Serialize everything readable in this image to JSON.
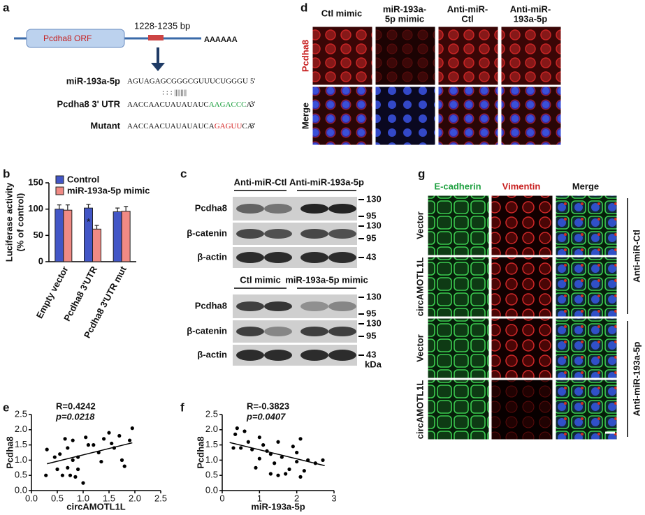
{
  "panel_a": {
    "label": "a",
    "orf": "Pcdha8 ORF",
    "site": "1228-1235 bp",
    "poly_a": "AAAAAA",
    "mirna": {
      "name": "miR-193a-5p",
      "seq": "AGUAGAGCGGGCGUUUCUGGGU",
      "end": "5'"
    },
    "pairing": ": : : ||||||||",
    "utr": {
      "name": "Pcdha8 3' UTR",
      "prefix": "AACCAACUAUAUAUC",
      "site": "AAGACCC",
      "suffix": "A",
      "end": "3'"
    },
    "mutant": {
      "name": "Mutant",
      "prefix": "AACCAACUAUAUAUCA",
      "site": "GAGUU",
      "suffix": "CA",
      "end": "3'"
    }
  },
  "panel_b": {
    "label": "b"
  },
  "panel_c": {
    "label": "c",
    "top": {
      "groups": [
        "Anti-miR-Ctl",
        "Anti-miR-193a-5p"
      ],
      "rows": [
        "Pcdha8",
        "β-catenin",
        "β-actin"
      ],
      "markers": [
        "130",
        "95",
        "130",
        "95",
        "43"
      ]
    },
    "bottom": {
      "groups": [
        "Ctl mimic",
        "miR-193a-5p mimic"
      ],
      "rows": [
        "Pcdha8",
        "β-catenin",
        "β-actin"
      ],
      "markers": [
        "130",
        "95",
        "130",
        "95",
        "43"
      ],
      "unit": "kDa"
    }
  },
  "panel_d": {
    "label": "d",
    "columns": [
      [
        "Ctl mimic"
      ],
      [
        "miR-193a-",
        "5p mimic"
      ],
      [
        "Anti-miR-",
        "Ctl"
      ],
      [
        "Anti-miR-",
        "193a-5p"
      ]
    ],
    "rows": [
      "Pcdha8",
      "Merge"
    ]
  },
  "panel_e": {
    "label": "e"
  },
  "panel_f": {
    "label": "f"
  },
  "panel_g": {
    "label": "g",
    "columns": [
      "E-cadherin",
      "Vimentin",
      "Merge"
    ],
    "rows": [
      "Vector",
      "circAMOTL1L",
      "Vector",
      "circAMOTL1L"
    ],
    "groups": [
      "Anti-miR-Ctl",
      "Anti-miR-193a-5p"
    ]
  },
  "chart_data": [
    {
      "type": "bar",
      "ylabel": [
        "Luciferase activity",
        "(% of control)"
      ],
      "categories": [
        "Empty vector",
        "Pcdha8 3'UTR",
        "Pcdha8 3'UTR mut"
      ],
      "series": [
        {
          "name": "Control",
          "color": "#4256c6",
          "values": [
            100,
            102,
            95
          ],
          "errors": [
            8,
            7,
            7
          ]
        },
        {
          "name": "miR-193a-5p mimic",
          "color": "#f08a84",
          "values": [
            98,
            62,
            96
          ],
          "errors": [
            10,
            7,
            9
          ]
        }
      ],
      "annotation": "*",
      "ylim": [
        0,
        150
      ],
      "yticks": [
        0,
        50,
        100,
        150
      ]
    },
    {
      "type": "scatter",
      "annotations": [
        "R=0.4242",
        "p=0.0218"
      ],
      "xlabel": "circAMOTL1L",
      "ylabel": "Pcdha8",
      "x": [
        0.28,
        0.3,
        0.45,
        0.5,
        0.55,
        0.6,
        0.65,
        0.7,
        0.7,
        0.75,
        0.8,
        0.8,
        0.85,
        0.9,
        0.9,
        1.0,
        1.05,
        1.1,
        1.2,
        1.3,
        1.35,
        1.4,
        1.5,
        1.55,
        1.6,
        1.7,
        1.75,
        1.8,
        1.9,
        1.95
      ],
      "y": [
        0.5,
        1.35,
        1.1,
        0.7,
        1.2,
        0.5,
        1.7,
        0.75,
        1.4,
        0.5,
        1.65,
        1.0,
        0.45,
        0.7,
        1.1,
        0.25,
        1.75,
        1.5,
        1.5,
        1.25,
        0.95,
        1.7,
        1.9,
        1.55,
        1.4,
        1.8,
        1.0,
        0.8,
        1.65,
        2.05
      ],
      "trend": {
        "x": [
          0.3,
          1.95
        ],
        "y": [
          0.88,
          1.57
        ]
      },
      "xlim": [
        0,
        2.5
      ],
      "xticks": [
        {
          "value": 0,
          "label": "0.0"
        },
        0.5,
        {
          "value": 1,
          "label": "1.0"
        },
        1.5,
        {
          "value": 2,
          "label": "2.0"
        },
        2.5
      ],
      "ylim": [
        0,
        2.5
      ],
      "yticks": [
        {
          "value": 0,
          "label": "0.0"
        },
        0.5,
        {
          "value": 1,
          "label": "1.0"
        },
        1.5,
        {
          "value": 2,
          "label": "2.0"
        },
        2.5
      ]
    },
    {
      "type": "scatter",
      "annotations": [
        "R=-0.3823",
        "p=0.0407"
      ],
      "xlabel": "miR-193a-5p",
      "ylabel": "Pcdha8",
      "x": [
        0.3,
        0.35,
        0.4,
        0.5,
        0.6,
        0.7,
        0.8,
        0.9,
        1.0,
        1.0,
        1.1,
        1.2,
        1.3,
        1.3,
        1.4,
        1.5,
        1.5,
        1.6,
        1.7,
        1.8,
        1.9,
        2.0,
        2.0,
        2.1,
        2.1,
        2.2,
        2.3,
        2.5,
        2.7
      ],
      "y": [
        1.4,
        1.85,
        2.05,
        1.4,
        1.95,
        1.6,
        1.35,
        0.75,
        1.05,
        1.75,
        1.5,
        1.3,
        1.2,
        0.55,
        0.9,
        0.5,
        1.6,
        1.1,
        0.55,
        0.7,
        1.45,
        1.25,
        0.95,
        1.7,
        0.45,
        0.65,
        1.0,
        0.9,
        1.0
      ],
      "trend": {
        "x": [
          0.2,
          2.75
        ],
        "y": [
          1.58,
          0.82
        ]
      },
      "xlim": [
        0,
        3
      ],
      "xticks": [
        0,
        1,
        2,
        3
      ],
      "ylim": [
        0,
        2.5
      ],
      "yticks": [
        {
          "value": 0,
          "label": "0.0"
        },
        0.5,
        {
          "value": 1,
          "label": "1.0"
        },
        1.5,
        {
          "value": 2,
          "label": "2.0"
        },
        2.5
      ]
    }
  ]
}
